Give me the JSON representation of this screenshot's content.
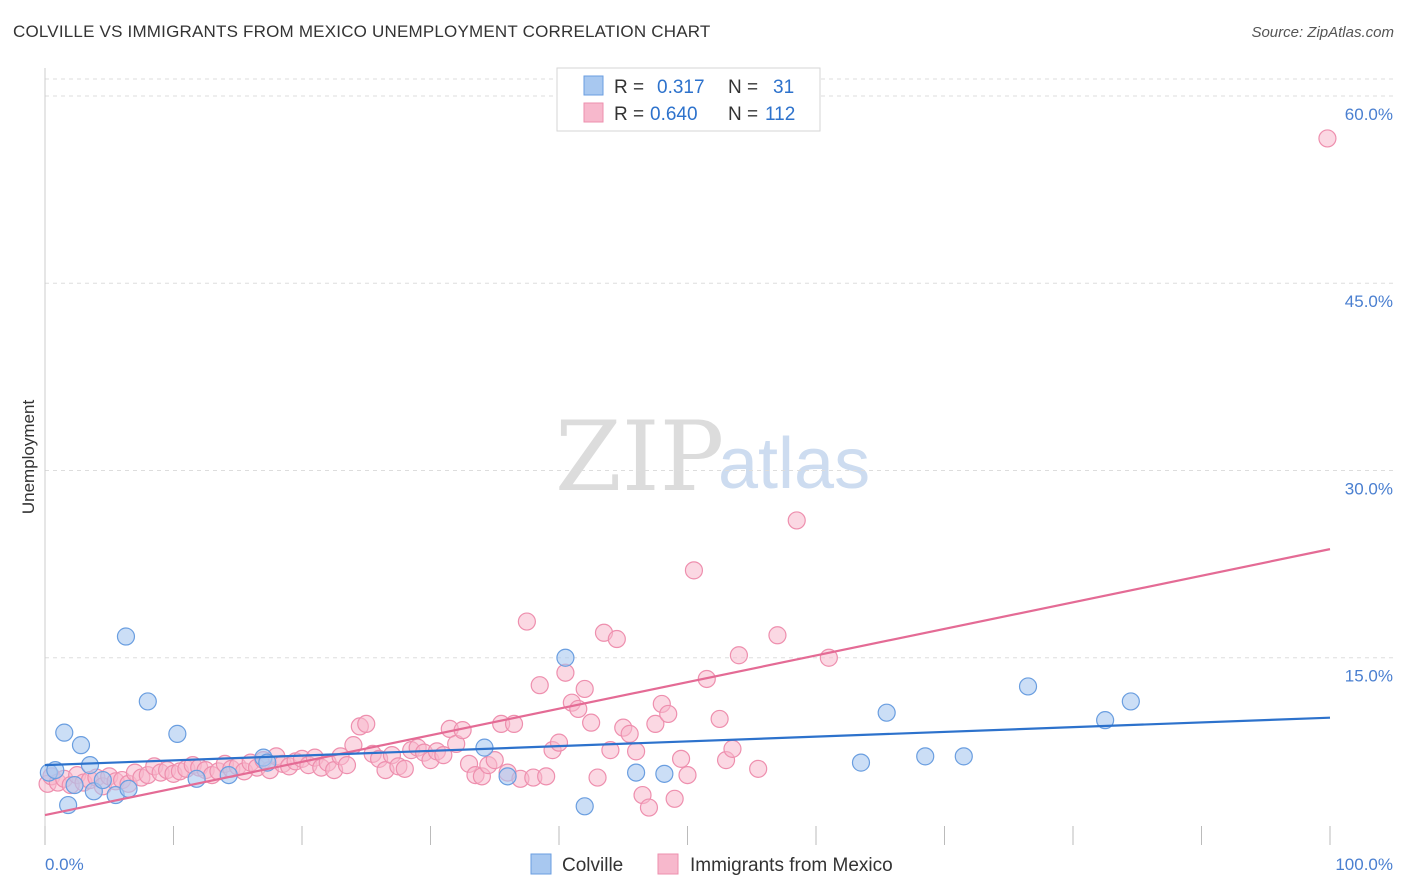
{
  "title": "COLVILLE VS IMMIGRANTS FROM MEXICO UNEMPLOYMENT CORRELATION CHART",
  "source": "Source: ZipAtlas.com",
  "watermark": {
    "zip": "ZIP",
    "atlas": "atlas"
  },
  "colors": {
    "blue_fill": "#a8c8f0",
    "blue_stroke": "#6a9ee0",
    "blue_line": "#2d72cc",
    "pink_fill": "#f7b8cc",
    "pink_stroke": "#ee8fae",
    "pink_line": "#e46b95",
    "tick_blue": "#4a7fd0"
  },
  "legend": {
    "rows": [
      {
        "r_label": "R =",
        "r_value": "0.317",
        "n_label": "N =",
        "n_value": "31"
      },
      {
        "r_label": "R =",
        "r_value": "0.640",
        "n_label": "N =",
        "n_value": "112"
      }
    ]
  },
  "bottom_legend": [
    "Colville",
    "Immigrants from Mexico"
  ],
  "chart_data": {
    "type": "scatter",
    "title": "COLVILLE VS IMMIGRANTS FROM MEXICO UNEMPLOYMENT CORRELATION CHART",
    "xlabel": "",
    "ylabel": "Unemployment",
    "xlim": [
      0,
      100
    ],
    "ylim": [
      0,
      62
    ],
    "x_tick_labels": [
      {
        "value": 0,
        "label": "0.0%"
      },
      {
        "value": 100,
        "label": "100.0%"
      }
    ],
    "y_tick_labels": [
      {
        "value": 15,
        "label": "15.0%"
      },
      {
        "value": 30,
        "label": "30.0%"
      },
      {
        "value": 45,
        "label": "45.0%"
      },
      {
        "value": 60,
        "label": "60.0%"
      }
    ],
    "grid": true,
    "series": [
      {
        "name": "Colville",
        "r": 0.317,
        "n": 31,
        "trend": {
          "x": [
            0,
            100
          ],
          "y": [
            6.4,
            10.2
          ]
        },
        "points": [
          [
            0.3,
            5.8
          ],
          [
            0.8,
            6.0
          ],
          [
            1.5,
            9.0
          ],
          [
            1.8,
            3.2
          ],
          [
            2.3,
            4.8
          ],
          [
            2.8,
            8.0
          ],
          [
            3.5,
            6.4
          ],
          [
            3.8,
            4.3
          ],
          [
            4.5,
            5.2
          ],
          [
            5.5,
            4.0
          ],
          [
            6.3,
            16.7
          ],
          [
            6.5,
            4.5
          ],
          [
            8.0,
            11.5
          ],
          [
            10.3,
            8.9
          ],
          [
            11.8,
            5.3
          ],
          [
            14.3,
            5.6
          ],
          [
            17.0,
            7.0
          ],
          [
            17.3,
            6.6
          ],
          [
            34.2,
            7.8
          ],
          [
            36.0,
            5.5
          ],
          [
            40.5,
            15.0
          ],
          [
            42.0,
            3.1
          ],
          [
            46.0,
            5.8
          ],
          [
            48.2,
            5.7
          ],
          [
            63.5,
            6.6
          ],
          [
            65.5,
            10.6
          ],
          [
            68.5,
            7.1
          ],
          [
            71.5,
            7.1
          ],
          [
            76.5,
            12.7
          ],
          [
            82.5,
            10.0
          ],
          [
            84.5,
            11.5
          ]
        ]
      },
      {
        "name": "Immigrants from Mexico",
        "r": 0.64,
        "n": 112,
        "trend": {
          "x": [
            0,
            100
          ],
          "y": [
            2.4,
            23.7
          ]
        },
        "points": [
          [
            0.2,
            4.9
          ],
          [
            0.5,
            5.5
          ],
          [
            1.0,
            5.0
          ],
          [
            1.5,
            5.3
          ],
          [
            2.0,
            4.8
          ],
          [
            2.5,
            5.6
          ],
          [
            3.0,
            5.0
          ],
          [
            3.5,
            5.2
          ],
          [
            4.0,
            5.4
          ],
          [
            4.5,
            4.7
          ],
          [
            5.0,
            5.5
          ],
          [
            5.5,
            5.1
          ],
          [
            6.0,
            5.2
          ],
          [
            6.5,
            4.9
          ],
          [
            7.0,
            5.8
          ],
          [
            7.5,
            5.4
          ],
          [
            8.0,
            5.6
          ],
          [
            8.5,
            6.3
          ],
          [
            9.0,
            5.8
          ],
          [
            9.5,
            6.0
          ],
          [
            10.0,
            5.7
          ],
          [
            10.5,
            5.9
          ],
          [
            11.0,
            6.1
          ],
          [
            11.5,
            6.4
          ],
          [
            12.0,
            6.2
          ],
          [
            12.5,
            6.0
          ],
          [
            13.0,
            5.6
          ],
          [
            13.5,
            5.9
          ],
          [
            14.0,
            6.5
          ],
          [
            14.5,
            6.1
          ],
          [
            15.0,
            6.3
          ],
          [
            15.5,
            5.9
          ],
          [
            16.0,
            6.6
          ],
          [
            16.5,
            6.2
          ],
          [
            17.0,
            6.8
          ],
          [
            17.5,
            6.0
          ],
          [
            18.0,
            7.1
          ],
          [
            18.5,
            6.5
          ],
          [
            19.0,
            6.3
          ],
          [
            19.5,
            6.7
          ],
          [
            20.0,
            6.9
          ],
          [
            20.5,
            6.4
          ],
          [
            21.0,
            7.0
          ],
          [
            21.5,
            6.2
          ],
          [
            22.0,
            6.6
          ],
          [
            22.5,
            6.0
          ],
          [
            23.0,
            7.1
          ],
          [
            23.5,
            6.4
          ],
          [
            24.0,
            8.0
          ],
          [
            24.5,
            9.5
          ],
          [
            25.0,
            9.7
          ],
          [
            25.5,
            7.3
          ],
          [
            26.0,
            6.9
          ],
          [
            26.5,
            6.0
          ],
          [
            27.0,
            7.2
          ],
          [
            27.5,
            6.3
          ],
          [
            28.0,
            6.1
          ],
          [
            28.5,
            7.6
          ],
          [
            29.0,
            7.8
          ],
          [
            29.5,
            7.4
          ],
          [
            30.0,
            6.8
          ],
          [
            30.5,
            7.5
          ],
          [
            31.0,
            7.2
          ],
          [
            31.5,
            9.3
          ],
          [
            32.0,
            8.1
          ],
          [
            32.5,
            9.2
          ],
          [
            33.0,
            6.5
          ],
          [
            33.5,
            5.6
          ],
          [
            34.0,
            5.5
          ],
          [
            34.5,
            6.4
          ],
          [
            35.0,
            6.8
          ],
          [
            35.5,
            9.7
          ],
          [
            36.0,
            5.8
          ],
          [
            36.5,
            9.7
          ],
          [
            37.0,
            5.3
          ],
          [
            37.5,
            17.9
          ],
          [
            38.0,
            5.4
          ],
          [
            38.5,
            12.8
          ],
          [
            39.0,
            5.5
          ],
          [
            39.5,
            7.6
          ],
          [
            40.0,
            8.2
          ],
          [
            40.5,
            13.8
          ],
          [
            41.0,
            11.4
          ],
          [
            41.5,
            10.9
          ],
          [
            42.0,
            12.5
          ],
          [
            42.5,
            9.8
          ],
          [
            43.0,
            5.4
          ],
          [
            43.5,
            17.0
          ],
          [
            44.0,
            7.6
          ],
          [
            44.5,
            16.5
          ],
          [
            45.0,
            9.4
          ],
          [
            45.5,
            8.9
          ],
          [
            46.0,
            7.5
          ],
          [
            46.5,
            4.0
          ],
          [
            47.0,
            3.0
          ],
          [
            47.5,
            9.7
          ],
          [
            48.0,
            11.3
          ],
          [
            48.5,
            10.5
          ],
          [
            49.0,
            3.7
          ],
          [
            49.5,
            6.9
          ],
          [
            50.0,
            5.6
          ],
          [
            50.5,
            22.0
          ],
          [
            51.5,
            13.3
          ],
          [
            52.5,
            10.1
          ],
          [
            53.0,
            6.8
          ],
          [
            53.5,
            7.7
          ],
          [
            54.0,
            15.2
          ],
          [
            55.5,
            6.1
          ],
          [
            57.0,
            16.8
          ],
          [
            58.5,
            26.0
          ],
          [
            61.0,
            15.0
          ],
          [
            99.8,
            56.6
          ]
        ]
      }
    ]
  }
}
